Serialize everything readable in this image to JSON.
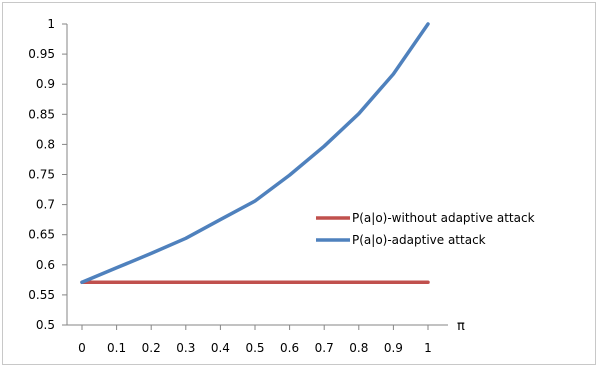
{
  "chart_data": {
    "type": "line",
    "title": "",
    "xlabel": "π",
    "ylabel": "",
    "x": [
      0,
      0.1,
      0.2,
      0.3,
      0.4,
      0.5,
      0.6,
      0.7,
      0.8,
      0.9,
      1
    ],
    "x_tick_labels": [
      "0",
      "0.1",
      "0.2",
      "0.3",
      "0.4",
      "0.5",
      "0.6",
      "0.7",
      "0.8",
      "0.9",
      "1"
    ],
    "ylim": [
      0.5,
      1
    ],
    "y_ticks": [
      0.5,
      0.55,
      0.6,
      0.65,
      0.7,
      0.75,
      0.8,
      0.85,
      0.9,
      0.95,
      1
    ],
    "y_tick_labels": [
      "0.5",
      "0.55",
      "0.6",
      "0.65",
      "0.7",
      "0.75",
      "0.8",
      "0.85",
      "0.9",
      "0.95",
      "1"
    ],
    "grid": false,
    "legend_position": "right",
    "series": [
      {
        "name": "P(a|o)-without adaptive attack",
        "color": "#c0504d",
        "values": [
          0.571,
          0.571,
          0.571,
          0.571,
          0.571,
          0.571,
          0.571,
          0.571,
          0.571,
          0.571,
          0.571
        ]
      },
      {
        "name": "P(a|o)-adaptive attack",
        "color": "#4f81bd",
        "values": [
          0.571,
          0.595,
          0.619,
          0.644,
          0.675,
          0.706,
          0.749,
          0.797,
          0.851,
          0.917,
          1.0
        ]
      }
    ]
  }
}
